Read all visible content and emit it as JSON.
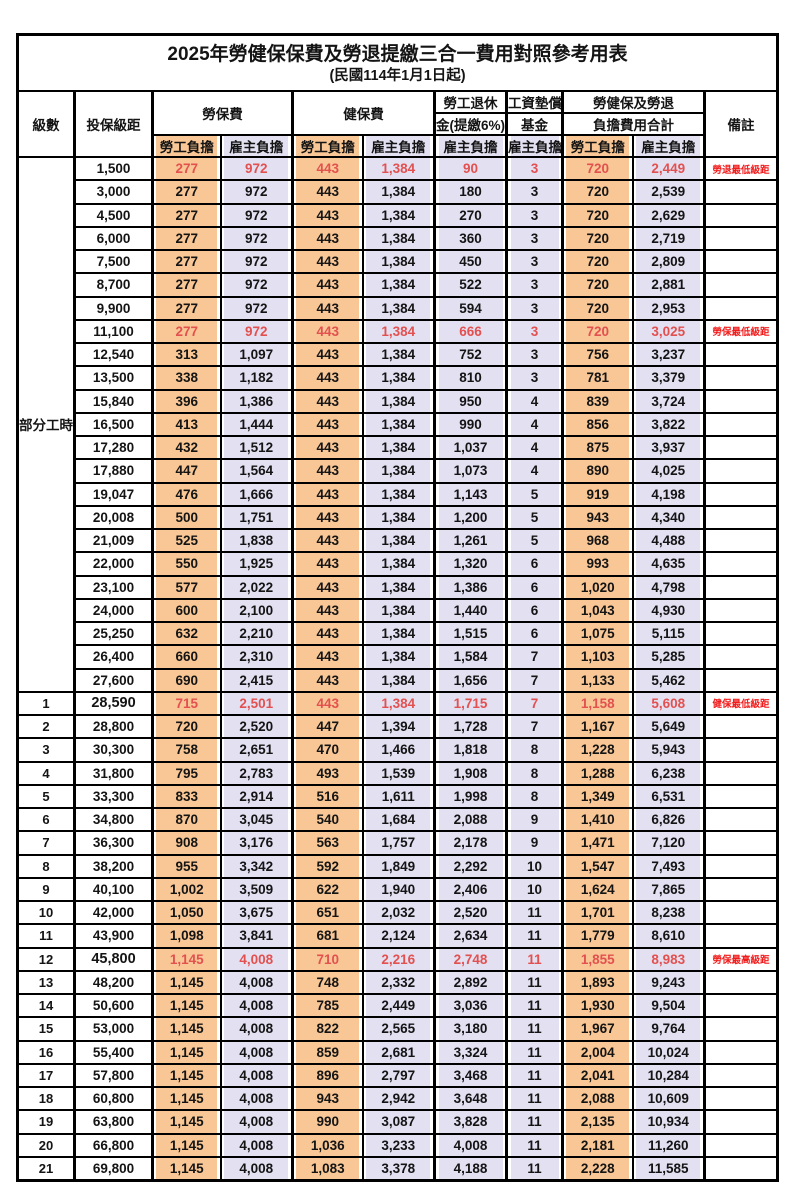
{
  "title": "2025年勞健保保費及勞退提繳三合一費用對照參考用表",
  "subtitle": "(民國114年1月1日起)",
  "columns": {
    "level": "級數",
    "bracket": "投保級距",
    "labor_group": "勞保費",
    "health_group": "健保費",
    "pension_line1": "勞工退休",
    "pension_line2": "金(提繳6%)",
    "wage_fund_line1": "工資墊償",
    "wage_fund_line2": "基金",
    "total_line1": "勞健保及勞退",
    "total_line2": "負擔費用合計",
    "employee": "勞工負擔",
    "employer": "雇主負擔",
    "remark": "備註"
  },
  "part_time_label": "部分工時",
  "colors": {
    "employee_fill": "#F9C795",
    "employer_fill": "#E3E0F2",
    "highlight_red": "#E25150",
    "remark_red": "#F21B1B",
    "border_black": "#000000"
  },
  "rows": [
    {
      "level": "",
      "bracket": "1,500",
      "values": [
        "277",
        "972",
        "443",
        "1,384",
        "90",
        "3",
        "720",
        "2,449"
      ],
      "remark": "勞退最低級距",
      "red": true,
      "bold": false
    },
    {
      "level": "",
      "bracket": "3,000",
      "values": [
        "277",
        "972",
        "443",
        "1,384",
        "180",
        "3",
        "720",
        "2,539"
      ],
      "remark": "",
      "red": false,
      "bold": false
    },
    {
      "level": "",
      "bracket": "4,500",
      "values": [
        "277",
        "972",
        "443",
        "1,384",
        "270",
        "3",
        "720",
        "2,629"
      ],
      "remark": "",
      "red": false,
      "bold": false
    },
    {
      "level": "",
      "bracket": "6,000",
      "values": [
        "277",
        "972",
        "443",
        "1,384",
        "360",
        "3",
        "720",
        "2,719"
      ],
      "remark": "",
      "red": false,
      "bold": false
    },
    {
      "level": "",
      "bracket": "7,500",
      "values": [
        "277",
        "972",
        "443",
        "1,384",
        "450",
        "3",
        "720",
        "2,809"
      ],
      "remark": "",
      "red": false,
      "bold": false
    },
    {
      "level": "",
      "bracket": "8,700",
      "values": [
        "277",
        "972",
        "443",
        "1,384",
        "522",
        "3",
        "720",
        "2,881"
      ],
      "remark": "",
      "red": false,
      "bold": false
    },
    {
      "level": "",
      "bracket": "9,900",
      "values": [
        "277",
        "972",
        "443",
        "1,384",
        "594",
        "3",
        "720",
        "2,953"
      ],
      "remark": "",
      "red": false,
      "bold": false
    },
    {
      "level": "",
      "bracket": "11,100",
      "values": [
        "277",
        "972",
        "443",
        "1,384",
        "666",
        "3",
        "720",
        "3,025"
      ],
      "remark": "勞保最低級距",
      "red": true,
      "bold": false
    },
    {
      "level": "",
      "bracket": "12,540",
      "values": [
        "313",
        "1,097",
        "443",
        "1,384",
        "752",
        "3",
        "756",
        "3,237"
      ],
      "remark": "",
      "red": false,
      "bold": false
    },
    {
      "level": "",
      "bracket": "13,500",
      "values": [
        "338",
        "1,182",
        "443",
        "1,384",
        "810",
        "3",
        "781",
        "3,379"
      ],
      "remark": "",
      "red": false,
      "bold": false
    },
    {
      "level": "",
      "bracket": "15,840",
      "values": [
        "396",
        "1,386",
        "443",
        "1,384",
        "950",
        "4",
        "839",
        "3,724"
      ],
      "remark": "",
      "red": false,
      "bold": false
    },
    {
      "level": "",
      "bracket": "16,500",
      "values": [
        "413",
        "1,444",
        "443",
        "1,384",
        "990",
        "4",
        "856",
        "3,822"
      ],
      "remark": "",
      "red": false,
      "bold": false
    },
    {
      "level": "",
      "bracket": "17,280",
      "values": [
        "432",
        "1,512",
        "443",
        "1,384",
        "1,037",
        "4",
        "875",
        "3,937"
      ],
      "remark": "",
      "red": false,
      "bold": false
    },
    {
      "level": "",
      "bracket": "17,880",
      "values": [
        "447",
        "1,564",
        "443",
        "1,384",
        "1,073",
        "4",
        "890",
        "4,025"
      ],
      "remark": "",
      "red": false,
      "bold": false
    },
    {
      "level": "",
      "bracket": "19,047",
      "values": [
        "476",
        "1,666",
        "443",
        "1,384",
        "1,143",
        "5",
        "919",
        "4,198"
      ],
      "remark": "",
      "red": false,
      "bold": false
    },
    {
      "level": "",
      "bracket": "20,008",
      "values": [
        "500",
        "1,751",
        "443",
        "1,384",
        "1,200",
        "5",
        "943",
        "4,340"
      ],
      "remark": "",
      "red": false,
      "bold": false
    },
    {
      "level": "",
      "bracket": "21,009",
      "values": [
        "525",
        "1,838",
        "443",
        "1,384",
        "1,261",
        "5",
        "968",
        "4,488"
      ],
      "remark": "",
      "red": false,
      "bold": false
    },
    {
      "level": "",
      "bracket": "22,000",
      "values": [
        "550",
        "1,925",
        "443",
        "1,384",
        "1,320",
        "6",
        "993",
        "4,635"
      ],
      "remark": "",
      "red": false,
      "bold": false
    },
    {
      "level": "",
      "bracket": "23,100",
      "values": [
        "577",
        "2,022",
        "443",
        "1,384",
        "1,386",
        "6",
        "1,020",
        "4,798"
      ],
      "remark": "",
      "red": false,
      "bold": false
    },
    {
      "level": "",
      "bracket": "24,000",
      "values": [
        "600",
        "2,100",
        "443",
        "1,384",
        "1,440",
        "6",
        "1,043",
        "4,930"
      ],
      "remark": "",
      "red": false,
      "bold": false
    },
    {
      "level": "",
      "bracket": "25,250",
      "values": [
        "632",
        "2,210",
        "443",
        "1,384",
        "1,515",
        "6",
        "1,075",
        "5,115"
      ],
      "remark": "",
      "red": false,
      "bold": false
    },
    {
      "level": "",
      "bracket": "26,400",
      "values": [
        "660",
        "2,310",
        "443",
        "1,384",
        "1,584",
        "7",
        "1,103",
        "5,285"
      ],
      "remark": "",
      "red": false,
      "bold": false
    },
    {
      "level": "",
      "bracket": "27,600",
      "values": [
        "690",
        "2,415",
        "443",
        "1,384",
        "1,656",
        "7",
        "1,133",
        "5,462"
      ],
      "remark": "",
      "red": false,
      "bold": false
    },
    {
      "level": "1",
      "bracket": "28,590",
      "values": [
        "715",
        "2,501",
        "443",
        "1,384",
        "1,715",
        "7",
        "1,158",
        "5,608"
      ],
      "remark": "健保最低級距",
      "red": true,
      "bold": true
    },
    {
      "level": "2",
      "bracket": "28,800",
      "values": [
        "720",
        "2,520",
        "447",
        "1,394",
        "1,728",
        "7",
        "1,167",
        "5,649"
      ],
      "remark": "",
      "red": false,
      "bold": false
    },
    {
      "level": "3",
      "bracket": "30,300",
      "values": [
        "758",
        "2,651",
        "470",
        "1,466",
        "1,818",
        "8",
        "1,228",
        "5,943"
      ],
      "remark": "",
      "red": false,
      "bold": false
    },
    {
      "level": "4",
      "bracket": "31,800",
      "values": [
        "795",
        "2,783",
        "493",
        "1,539",
        "1,908",
        "8",
        "1,288",
        "6,238"
      ],
      "remark": "",
      "red": false,
      "bold": false
    },
    {
      "level": "5",
      "bracket": "33,300",
      "values": [
        "833",
        "2,914",
        "516",
        "1,611",
        "1,998",
        "8",
        "1,349",
        "6,531"
      ],
      "remark": "",
      "red": false,
      "bold": false
    },
    {
      "level": "6",
      "bracket": "34,800",
      "values": [
        "870",
        "3,045",
        "540",
        "1,684",
        "2,088",
        "9",
        "1,410",
        "6,826"
      ],
      "remark": "",
      "red": false,
      "bold": false
    },
    {
      "level": "7",
      "bracket": "36,300",
      "values": [
        "908",
        "3,176",
        "563",
        "1,757",
        "2,178",
        "9",
        "1,471",
        "7,120"
      ],
      "remark": "",
      "red": false,
      "bold": false
    },
    {
      "level": "8",
      "bracket": "38,200",
      "values": [
        "955",
        "3,342",
        "592",
        "1,849",
        "2,292",
        "10",
        "1,547",
        "7,493"
      ],
      "remark": "",
      "red": false,
      "bold": false
    },
    {
      "level": "9",
      "bracket": "40,100",
      "values": [
        "1,002",
        "3,509",
        "622",
        "1,940",
        "2,406",
        "10",
        "1,624",
        "7,865"
      ],
      "remark": "",
      "red": false,
      "bold": false
    },
    {
      "level": "10",
      "bracket": "42,000",
      "values": [
        "1,050",
        "3,675",
        "651",
        "2,032",
        "2,520",
        "11",
        "1,701",
        "8,238"
      ],
      "remark": "",
      "red": false,
      "bold": false
    },
    {
      "level": "11",
      "bracket": "43,900",
      "values": [
        "1,098",
        "3,841",
        "681",
        "2,124",
        "2,634",
        "11",
        "1,779",
        "8,610"
      ],
      "remark": "",
      "red": false,
      "bold": false
    },
    {
      "level": "12",
      "bracket": "45,800",
      "values": [
        "1,145",
        "4,008",
        "710",
        "2,216",
        "2,748",
        "11",
        "1,855",
        "8,983"
      ],
      "remark": "勞保最高級距",
      "red": true,
      "bold": true
    },
    {
      "level": "13",
      "bracket": "48,200",
      "values": [
        "1,145",
        "4,008",
        "748",
        "2,332",
        "2,892",
        "11",
        "1,893",
        "9,243"
      ],
      "remark": "",
      "red": false,
      "bold": false
    },
    {
      "level": "14",
      "bracket": "50,600",
      "values": [
        "1,145",
        "4,008",
        "785",
        "2,449",
        "3,036",
        "11",
        "1,930",
        "9,504"
      ],
      "remark": "",
      "red": false,
      "bold": false
    },
    {
      "level": "15",
      "bracket": "53,000",
      "values": [
        "1,145",
        "4,008",
        "822",
        "2,565",
        "3,180",
        "11",
        "1,967",
        "9,764"
      ],
      "remark": "",
      "red": false,
      "bold": false
    },
    {
      "level": "16",
      "bracket": "55,400",
      "values": [
        "1,145",
        "4,008",
        "859",
        "2,681",
        "3,324",
        "11",
        "2,004",
        "10,024"
      ],
      "remark": "",
      "red": false,
      "bold": false
    },
    {
      "level": "17",
      "bracket": "57,800",
      "values": [
        "1,145",
        "4,008",
        "896",
        "2,797",
        "3,468",
        "11",
        "2,041",
        "10,284"
      ],
      "remark": "",
      "red": false,
      "bold": false
    },
    {
      "level": "18",
      "bracket": "60,800",
      "values": [
        "1,145",
        "4,008",
        "943",
        "2,942",
        "3,648",
        "11",
        "2,088",
        "10,609"
      ],
      "remark": "",
      "red": false,
      "bold": false
    },
    {
      "level": "19",
      "bracket": "63,800",
      "values": [
        "1,145",
        "4,008",
        "990",
        "3,087",
        "3,828",
        "11",
        "2,135",
        "10,934"
      ],
      "remark": "",
      "red": false,
      "bold": false
    },
    {
      "level": "20",
      "bracket": "66,800",
      "values": [
        "1,145",
        "4,008",
        "1,036",
        "3,233",
        "4,008",
        "11",
        "2,181",
        "11,260"
      ],
      "remark": "",
      "red": false,
      "bold": false
    },
    {
      "level": "21",
      "bracket": "69,800",
      "values": [
        "1,145",
        "4,008",
        "1,083",
        "3,378",
        "4,188",
        "11",
        "2,228",
        "11,585"
      ],
      "remark": "",
      "red": false,
      "bold": false
    }
  ]
}
